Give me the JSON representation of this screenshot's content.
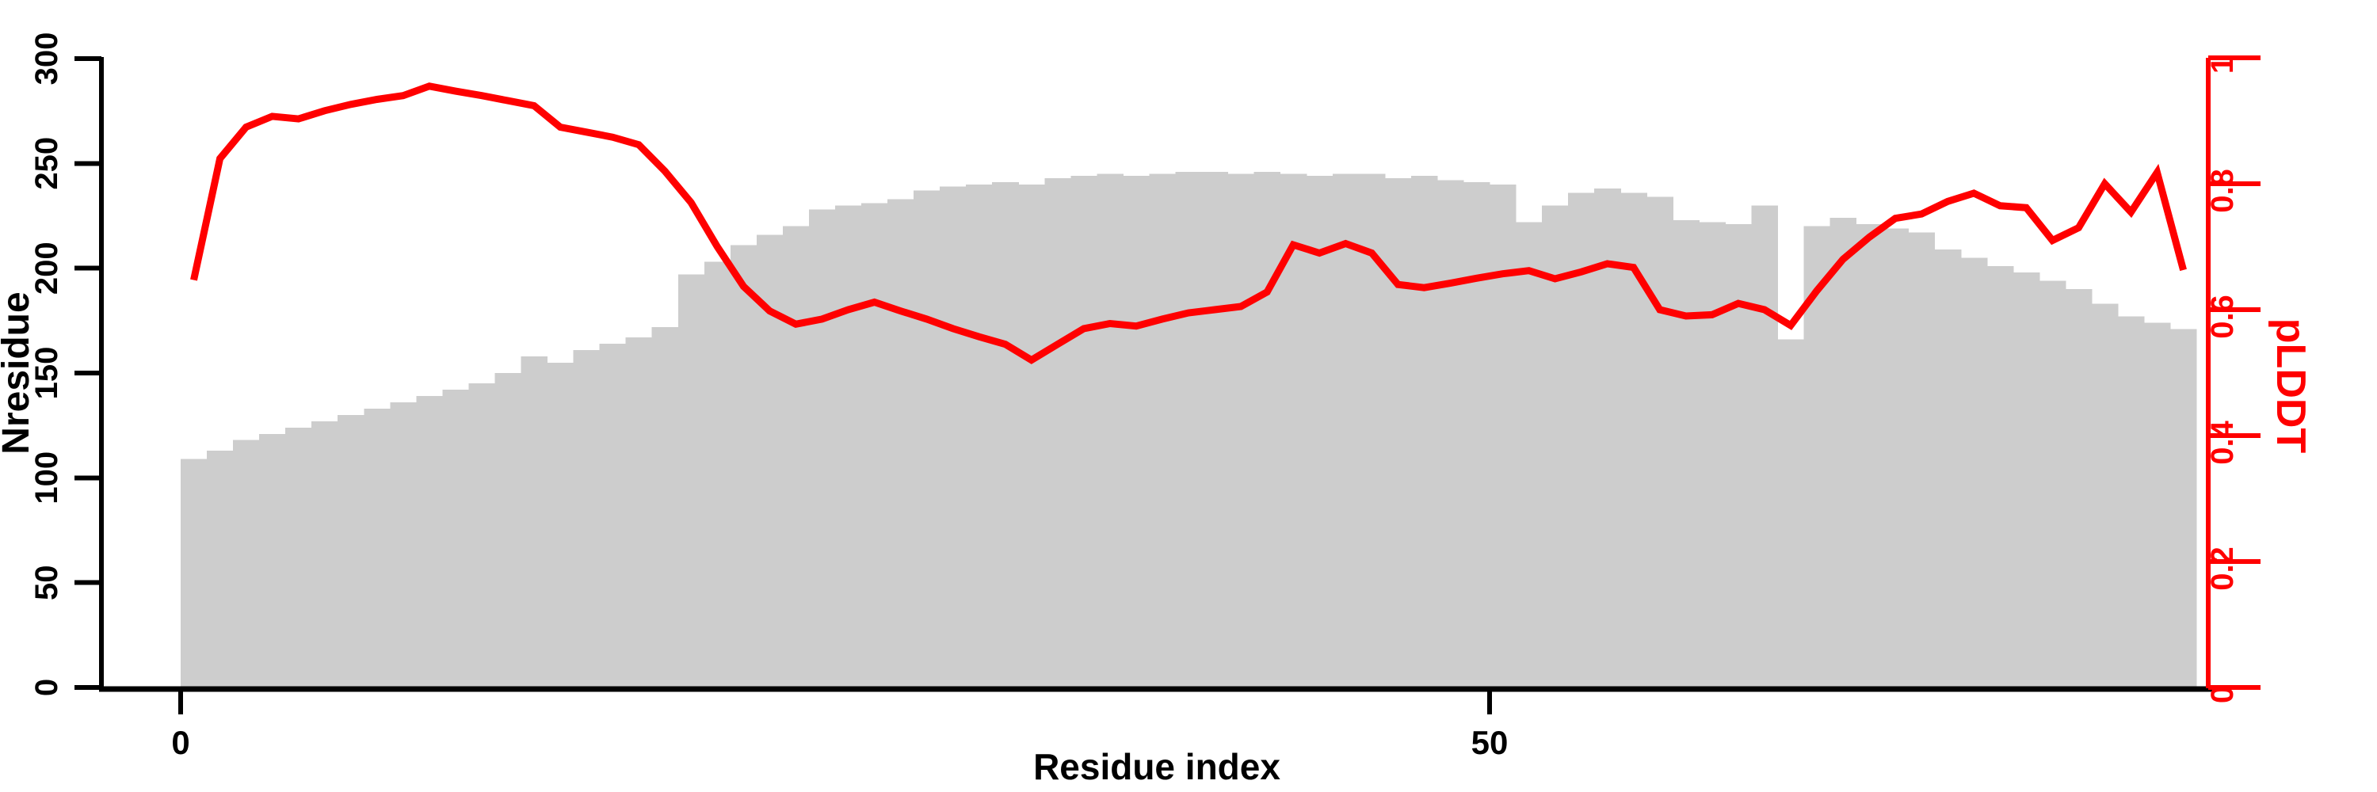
{
  "chart_data": {
    "type": "bar",
    "subtype": "dual-axis bar+line",
    "title": "",
    "xlabel": "Residue index",
    "ylabel_left": "Nresidue",
    "ylabel_right": "pLDDT",
    "grid": false,
    "legend_position": "none",
    "background": "#ffffff",
    "axis_color_left": "#000000",
    "axis_color_right": "#ff0000",
    "xlim": [
      0,
      77
    ],
    "ylim_left": [
      0,
      300
    ],
    "ylim_right": [
      0,
      1
    ],
    "x_ticks": [
      {
        "value": 0,
        "label": "0"
      },
      {
        "value": 50,
        "label": "50"
      }
    ],
    "y_ticks_left": [
      {
        "value": 0,
        "label": "0"
      },
      {
        "value": 50,
        "label": "50"
      },
      {
        "value": 100,
        "label": "100"
      },
      {
        "value": 150,
        "label": "150"
      },
      {
        "value": 200,
        "label": "200"
      },
      {
        "value": 250,
        "label": "250"
      },
      {
        "value": 300,
        "label": "300"
      }
    ],
    "y_ticks_right": [
      {
        "value": 0,
        "label": "0"
      },
      {
        "value": 0.2,
        "label": "0.2"
      },
      {
        "value": 0.4,
        "label": "0.4"
      },
      {
        "value": 0.6,
        "label": "0.6"
      },
      {
        "value": 0.8,
        "label": "0.8"
      },
      {
        "value": 1,
        "label": "1"
      }
    ],
    "residue_index": [
      0,
      1,
      2,
      3,
      4,
      5,
      6,
      7,
      8,
      9,
      10,
      11,
      12,
      13,
      14,
      15,
      16,
      17,
      18,
      19,
      20,
      21,
      22,
      23,
      24,
      25,
      26,
      27,
      28,
      29,
      30,
      31,
      32,
      33,
      34,
      35,
      36,
      37,
      38,
      39,
      40,
      41,
      42,
      43,
      44,
      45,
      46,
      47,
      48,
      49,
      50,
      51,
      52,
      53,
      54,
      55,
      56,
      57,
      58,
      59,
      60,
      61,
      62,
      63,
      64,
      65,
      66,
      67,
      68,
      69,
      70,
      71,
      72,
      73,
      74,
      75,
      76
    ],
    "series": [
      {
        "name": "Nresidue",
        "type": "bar",
        "yaxis": "left",
        "color": "#cdcdcd",
        "values": [
          109,
          113,
          118,
          121,
          124,
          127,
          130,
          133,
          136,
          139,
          142,
          145,
          150,
          158,
          155,
          161,
          164,
          167,
          172,
          197,
          203,
          211,
          216,
          220,
          228,
          230,
          231,
          233,
          237,
          239,
          240,
          241,
          240,
          243,
          244,
          245,
          244,
          245,
          246,
          246,
          245,
          246,
          245,
          244,
          245,
          245,
          243,
          244,
          242,
          241,
          240,
          222,
          230,
          236,
          238,
          236,
          234,
          223,
          222,
          221,
          230,
          166,
          220,
          224,
          221,
          219,
          217,
          209,
          205,
          201,
          198,
          194,
          190,
          183,
          177,
          174,
          171
        ]
      },
      {
        "name": "pLDDT",
        "type": "line",
        "yaxis": "right",
        "color": "#ff0000",
        "values": [
          0.647,
          0.84,
          0.89,
          0.907,
          0.903,
          0.916,
          0.926,
          0.934,
          0.94,
          0.955,
          0.947,
          0.94,
          0.932,
          0.924,
          0.89,
          0.882,
          0.874,
          0.862,
          0.82,
          0.77,
          0.7,
          0.637,
          0.598,
          0.577,
          0.585,
          0.6,
          0.612,
          0.598,
          0.585,
          0.57,
          0.557,
          0.545,
          0.52,
          0.545,
          0.57,
          0.578,
          0.574,
          0.585,
          0.595,
          0.6,
          0.605,
          0.628,
          0.703,
          0.69,
          0.705,
          0.69,
          0.64,
          0.635,
          0.642,
          0.65,
          0.657,
          0.662,
          0.649,
          0.66,
          0.673,
          0.667,
          0.6,
          0.59,
          0.592,
          0.61,
          0.6,
          0.575,
          0.63,
          0.68,
          0.715,
          0.745,
          0.752,
          0.772,
          0.785,
          0.765,
          0.762,
          0.71,
          0.73,
          0.8,
          0.755,
          0.818,
          0.663
        ]
      }
    ]
  }
}
